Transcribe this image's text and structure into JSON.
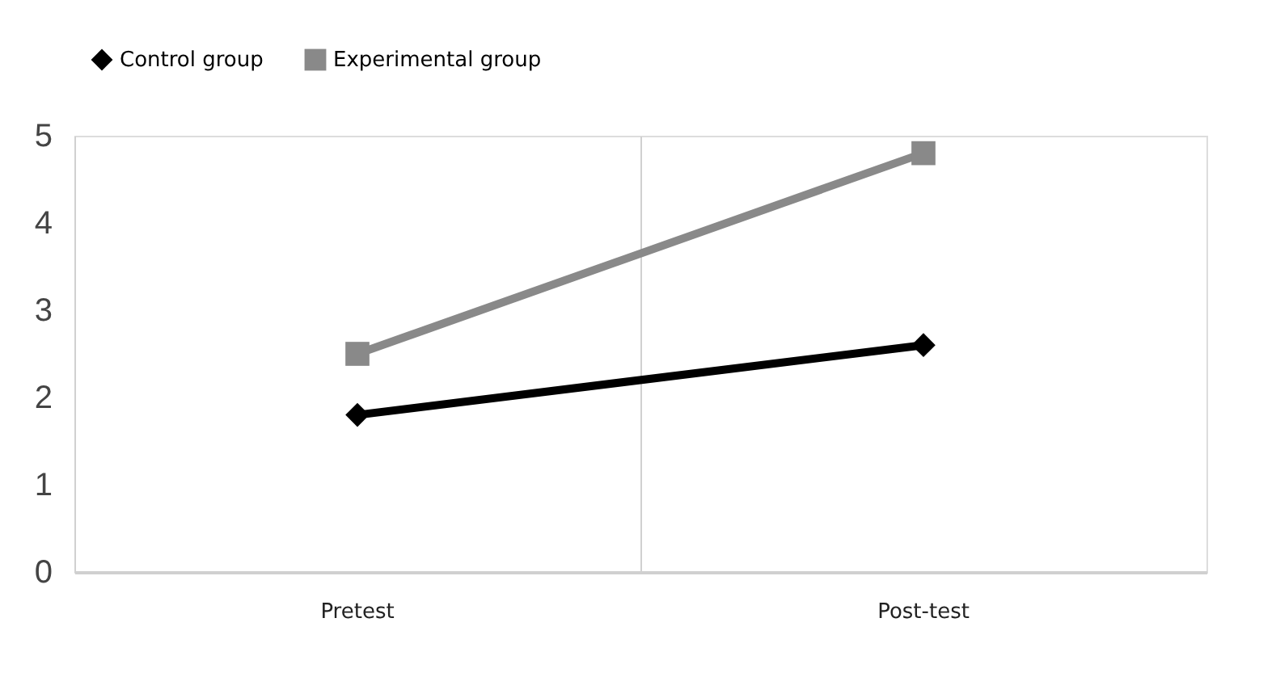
{
  "chart_data": {
    "type": "line",
    "categories": [
      "Pretest",
      "Post-test"
    ],
    "series": [
      {
        "name": "Control group",
        "color": "#000000",
        "marker": "diamond",
        "values": [
          1.8,
          2.6
        ]
      },
      {
        "name": "Experimental group",
        "color": "#898989",
        "marker": "square",
        "values": [
          2.5,
          4.8
        ]
      }
    ],
    "ylim": [
      0,
      5
    ],
    "yticks": [
      0,
      1,
      2,
      3,
      4,
      5
    ],
    "grid": "x",
    "legend": "top"
  }
}
